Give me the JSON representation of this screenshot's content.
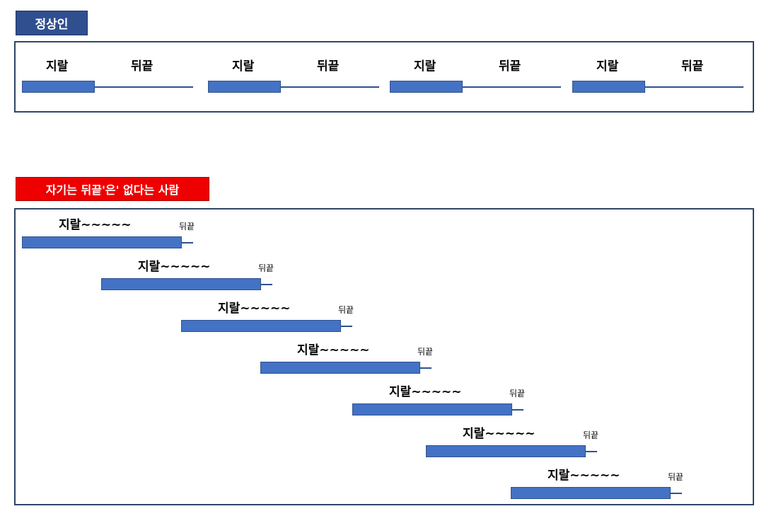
{
  "normal_section": {
    "title": "정상인",
    "pair_label_main": "지랄",
    "pair_label_tail": "뒤끝",
    "pair_count": 4
  },
  "abnormal_section": {
    "title": "자기는 뒤끝'은' 없다는 사람",
    "bar_label_main": "지랄~~~~~",
    "bar_label_tail": "뒤끝",
    "bar_count": 7
  },
  "colors": {
    "bar_fill": "#4472c4",
    "bar_border": "#2f528f",
    "normal_tag": "#2f4f8f",
    "abnormal_tag": "#ee0000",
    "panel_border": "#2f4569"
  }
}
